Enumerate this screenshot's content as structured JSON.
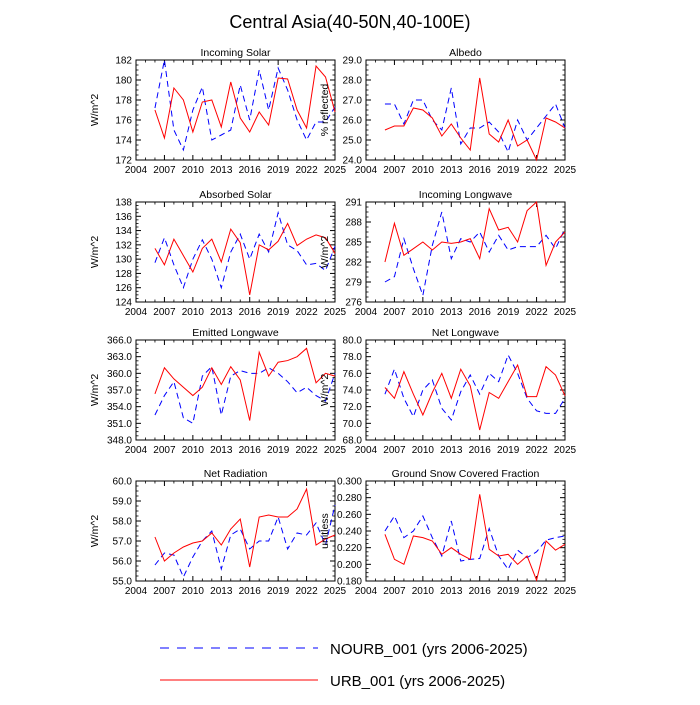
{
  "page_title": "Central Asia(40-50N,40-100E)",
  "x_ticks": [
    "2004",
    "2007",
    "2010",
    "2013",
    "2016",
    "2019",
    "2022",
    "2025"
  ],
  "legend": [
    {
      "label": "NOURB_001 (yrs 2006-2025)",
      "style": "dashed",
      "color": "#0000ff"
    },
    {
      "label": "URB_001 (yrs 2006-2025)",
      "style": "solid",
      "color": "#ff0000"
    }
  ],
  "chart_data": [
    {
      "type": "line",
      "title": "Incoming Solar",
      "ylabel": "W/m^2",
      "xlim": [
        2004,
        2025
      ],
      "ylim": [
        172,
        182
      ],
      "yticks": [
        "172",
        "174",
        "176",
        "178",
        "180",
        "182"
      ],
      "x": [
        2006,
        2007,
        2008,
        2009,
        2010,
        2011,
        2012,
        2013,
        2014,
        2015,
        2016,
        2017,
        2018,
        2019,
        2020,
        2021,
        2022,
        2023,
        2024,
        2025
      ],
      "series": [
        {
          "name": "NOURB_001",
          "values": [
            177.2,
            182.0,
            175.0,
            173.0,
            177.0,
            179.3,
            174.0,
            174.5,
            175.0,
            179.5,
            176.0,
            181.0,
            177.0,
            181.2,
            179.0,
            176.0,
            174.0,
            175.8,
            175.8,
            177.3
          ]
        },
        {
          "name": "URB_001",
          "values": [
            177.0,
            174.2,
            179.2,
            178.0,
            174.8,
            177.8,
            178.0,
            175.3,
            179.8,
            176.2,
            174.8,
            176.8,
            175.5,
            180.2,
            180.1,
            177.0,
            175.2,
            181.4,
            180.3,
            176.8
          ]
        }
      ]
    },
    {
      "type": "line",
      "title": "Albedo",
      "ylabel": "% reflected",
      "xlim": [
        2004,
        2025
      ],
      "ylim": [
        24.0,
        29.0
      ],
      "yticks": [
        "24.0",
        "25.0",
        "26.0",
        "27.0",
        "28.0",
        "29.0"
      ],
      "x": [
        2006,
        2007,
        2008,
        2009,
        2010,
        2011,
        2012,
        2013,
        2014,
        2015,
        2016,
        2017,
        2018,
        2019,
        2020,
        2021,
        2022,
        2023,
        2024,
        2025
      ],
      "series": [
        {
          "name": "NOURB_001",
          "values": [
            26.8,
            26.8,
            25.8,
            27.0,
            27.0,
            26.0,
            25.5,
            27.6,
            24.8,
            25.6,
            25.6,
            25.9,
            25.4,
            24.4,
            26.0,
            25.0,
            25.6,
            26.2,
            26.8,
            25.6
          ]
        },
        {
          "name": "URB_001",
          "values": [
            25.5,
            25.7,
            25.7,
            26.6,
            26.5,
            26.1,
            25.2,
            25.8,
            25.1,
            24.5,
            28.1,
            25.3,
            24.9,
            26.0,
            24.7,
            25.0,
            24.0,
            26.1,
            25.9,
            25.6
          ]
        }
      ]
    },
    {
      "type": "line",
      "title": "Absorbed Solar",
      "ylabel": "W/m^2",
      "xlim": [
        2004,
        2025
      ],
      "ylim": [
        124,
        138
      ],
      "yticks": [
        "124",
        "126",
        "128",
        "130",
        "132",
        "134",
        "136",
        "138"
      ],
      "x": [
        2006,
        2007,
        2008,
        2009,
        2010,
        2011,
        2012,
        2013,
        2014,
        2015,
        2016,
        2017,
        2018,
        2019,
        2020,
        2021,
        2022,
        2023,
        2024,
        2025
      ],
      "series": [
        {
          "name": "NOURB_001",
          "values": [
            129.5,
            133.0,
            129.2,
            126.0,
            130.0,
            132.7,
            130.0,
            126.0,
            131.0,
            133.5,
            130.0,
            133.5,
            131.0,
            136.5,
            132.0,
            131.2,
            129.2,
            129.4,
            128.4,
            131.8
          ]
        },
        {
          "name": "URB_001",
          "values": [
            131.5,
            129.2,
            132.8,
            130.5,
            128.2,
            131.5,
            132.8,
            129.6,
            134.2,
            132.3,
            125.0,
            132.0,
            131.3,
            132.5,
            135.0,
            131.9,
            132.8,
            133.4,
            133.0,
            130.8
          ]
        }
      ]
    },
    {
      "type": "line",
      "title": "Incoming Longwave",
      "ylabel": "W/m^2",
      "xlim": [
        2004,
        2025
      ],
      "ylim": [
        276,
        291
      ],
      "yticks": [
        "276",
        "279",
        "282",
        "285",
        "288",
        "291"
      ],
      "x": [
        2006,
        2007,
        2008,
        2009,
        2010,
        2011,
        2012,
        2013,
        2014,
        2015,
        2016,
        2017,
        2018,
        2019,
        2020,
        2021,
        2022,
        2023,
        2024,
        2025
      ],
      "series": [
        {
          "name": "NOURB_001",
          "values": [
            279.0,
            279.8,
            285.5,
            281.0,
            277.0,
            284.5,
            289.5,
            282.5,
            285.5,
            285.0,
            286.5,
            283.5,
            286.0,
            283.8,
            284.3,
            284.3,
            284.3,
            286.0,
            284.0,
            287.0
          ]
        },
        {
          "name": "URB_001",
          "values": [
            282.0,
            287.8,
            283.0,
            284.0,
            285.0,
            283.8,
            285.0,
            284.8,
            285.0,
            285.5,
            282.5,
            290.0,
            286.8,
            287.2,
            285.0,
            289.7,
            291.0,
            281.5,
            285.0,
            286.5
          ]
        }
      ]
    },
    {
      "type": "line",
      "title": "Emitted Longwave",
      "ylabel": "W/m^2",
      "xlim": [
        2004,
        2025
      ],
      "ylim": [
        348.0,
        366.0
      ],
      "yticks": [
        "348.0",
        "351.0",
        "354.0",
        "357.0",
        "360.0",
        "363.0",
        "366.0"
      ],
      "x": [
        2006,
        2007,
        2008,
        2009,
        2010,
        2011,
        2012,
        2013,
        2014,
        2015,
        2016,
        2017,
        2018,
        2019,
        2020,
        2021,
        2022,
        2023,
        2024,
        2025
      ],
      "series": [
        {
          "name": "NOURB_001",
          "values": [
            352.5,
            356.0,
            358.5,
            352.0,
            351.0,
            359.5,
            361.2,
            352.5,
            359.5,
            360.5,
            360.0,
            360.0,
            361.0,
            360.0,
            358.5,
            356.5,
            357.5,
            356.0,
            355.0,
            360.0
          ]
        },
        {
          "name": "URB_001",
          "values": [
            356.3,
            361.0,
            359.0,
            357.5,
            356.0,
            357.5,
            361.0,
            358.0,
            361.2,
            358.8,
            351.5,
            363.8,
            359.5,
            362.0,
            362.3,
            363.0,
            364.5,
            358.3,
            360.0,
            359.5
          ]
        }
      ]
    },
    {
      "type": "line",
      "title": "Net Longwave",
      "ylabel": "W/m^2",
      "xlim": [
        2004,
        2025
      ],
      "ylim": [
        68.0,
        80.0
      ],
      "yticks": [
        "68.0",
        "70.0",
        "72.0",
        "74.0",
        "76.0",
        "78.0",
        "80.0"
      ],
      "x": [
        2006,
        2007,
        2008,
        2009,
        2010,
        2011,
        2012,
        2013,
        2014,
        2015,
        2016,
        2017,
        2018,
        2019,
        2020,
        2021,
        2022,
        2023,
        2024,
        2025
      ],
      "series": [
        {
          "name": "NOURB_001",
          "values": [
            73.5,
            76.5,
            73.0,
            70.8,
            74.0,
            75.2,
            71.8,
            70.4,
            73.8,
            75.8,
            73.5,
            76.0,
            75.0,
            78.2,
            76.0,
            73.0,
            71.5,
            71.2,
            71.2,
            73.0
          ]
        },
        {
          "name": "URB_001",
          "values": [
            74.3,
            73.0,
            76.2,
            73.5,
            71.0,
            73.7,
            76.0,
            73.0,
            76.5,
            74.5,
            69.2,
            73.7,
            73.0,
            75.0,
            77.0,
            73.2,
            73.2,
            76.8,
            75.8,
            73.3
          ]
        }
      ]
    },
    {
      "type": "line",
      "title": "Net Radiation",
      "ylabel": "W/m^2",
      "xlim": [
        2004,
        2025
      ],
      "ylim": [
        55.0,
        60.0
      ],
      "yticks": [
        "55.0",
        "56.0",
        "57.0",
        "58.0",
        "59.0",
        "60.0"
      ],
      "x": [
        2006,
        2007,
        2008,
        2009,
        2010,
        2011,
        2012,
        2013,
        2014,
        2015,
        2016,
        2017,
        2018,
        2019,
        2020,
        2021,
        2022,
        2023,
        2024,
        2025
      ],
      "series": [
        {
          "name": "NOURB_001",
          "values": [
            55.8,
            56.4,
            56.3,
            55.2,
            56.2,
            57.0,
            57.5,
            55.6,
            57.3,
            57.6,
            56.6,
            57.0,
            57.0,
            58.2,
            56.6,
            57.4,
            57.3,
            57.9,
            56.8,
            58.8
          ]
        },
        {
          "name": "URB_001",
          "values": [
            57.2,
            56.0,
            56.4,
            56.7,
            56.9,
            57.0,
            57.4,
            56.8,
            57.6,
            58.1,
            55.7,
            58.2,
            58.3,
            58.2,
            58.2,
            58.6,
            59.6,
            56.8,
            57.1,
            57.3
          ]
        }
      ]
    },
    {
      "type": "line",
      "title": "Ground Snow Covered Fraction",
      "ylabel": "unitless",
      "xlim": [
        2004,
        2025
      ],
      "ylim": [
        0.18,
        0.3
      ],
      "yticks": [
        "0.180",
        "0.200",
        "0.220",
        "0.240",
        "0.260",
        "0.280",
        "0.300"
      ],
      "x": [
        2006,
        2007,
        2008,
        2009,
        2010,
        2011,
        2012,
        2013,
        2014,
        2015,
        2016,
        2017,
        2018,
        2019,
        2020,
        2021,
        2022,
        2023,
        2024,
        2025
      ],
      "series": [
        {
          "name": "NOURB_001",
          "values": [
            0.24,
            0.258,
            0.232,
            0.24,
            0.258,
            0.232,
            0.21,
            0.252,
            0.204,
            0.206,
            0.207,
            0.243,
            0.21,
            0.194,
            0.217,
            0.208,
            0.215,
            0.229,
            0.232,
            0.234
          ]
        },
        {
          "name": "URB_001",
          "values": [
            0.236,
            0.206,
            0.2,
            0.234,
            0.232,
            0.228,
            0.212,
            0.22,
            0.212,
            0.206,
            0.284,
            0.218,
            0.21,
            0.212,
            0.2,
            0.21,
            0.181,
            0.228,
            0.217,
            0.224
          ]
        }
      ]
    }
  ]
}
